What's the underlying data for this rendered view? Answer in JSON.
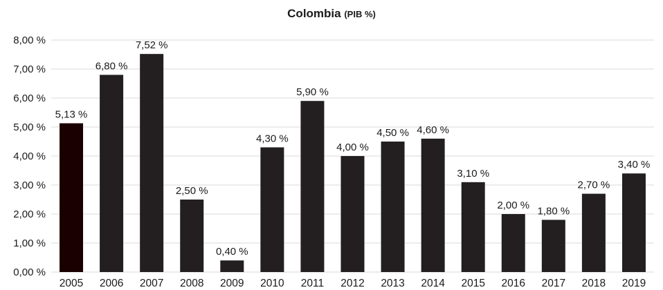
{
  "chart_data": {
    "type": "bar",
    "title": "Colombia",
    "title_suffix": "(PIB %)",
    "xlabel": "",
    "ylabel": "",
    "categories": [
      "2005",
      "2006",
      "2007",
      "2008",
      "2009",
      "2010",
      "2011",
      "2012",
      "2013",
      "2014",
      "2015",
      "2016",
      "2017",
      "2018",
      "2019"
    ],
    "values": [
      5.13,
      6.8,
      7.52,
      2.5,
      0.4,
      4.3,
      5.9,
      4.0,
      4.5,
      4.6,
      3.1,
      2.0,
      1.8,
      2.7,
      3.4
    ],
    "data_labels": [
      "5,13 %",
      "6,80 %",
      "7,52 %",
      "2,50 %",
      "0,40 %",
      "4,30 %",
      "5,90 %",
      "4,00 %",
      "4,50 %",
      "4,60 %",
      "3,10 %",
      "2,00 %",
      "1,80 %",
      "2,70 %",
      "3,40 %"
    ],
    "y_ticks": [
      0,
      1,
      2,
      3,
      4,
      5,
      6,
      7,
      8
    ],
    "y_tick_labels": [
      "0,00 %",
      "1,00 %",
      "2,00 %",
      "3,00 %",
      "4,00 %",
      "5,00 %",
      "6,00 %",
      "7,00 %",
      "8,00 %"
    ],
    "ylim": [
      0,
      8
    ],
    "grid": true,
    "legend": "none",
    "colors": {
      "bar": "#231f20",
      "first_bar": "#1a0000",
      "grid": "#d9d9d9",
      "text": "#1a1a1a"
    }
  }
}
